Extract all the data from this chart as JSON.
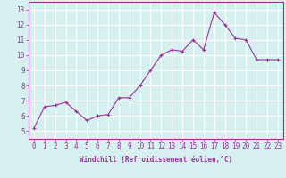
{
  "x": [
    0,
    1,
    2,
    3,
    4,
    5,
    6,
    7,
    8,
    9,
    10,
    11,
    12,
    13,
    14,
    15,
    16,
    17,
    18,
    19,
    20,
    21,
    22,
    23
  ],
  "y": [
    5.2,
    6.6,
    6.7,
    6.9,
    6.3,
    5.7,
    6.0,
    6.1,
    7.2,
    7.2,
    8.0,
    9.0,
    10.0,
    10.35,
    10.25,
    11.0,
    10.35,
    12.8,
    12.0,
    11.1,
    11.0,
    9.7,
    9.7,
    9.7
  ],
  "line_color": "#993399",
  "marker": "+",
  "bg_color": "#d6f0f0",
  "grid_color": "#ffffff",
  "xlabel": "Windchill (Refroidissement éolien,°C)",
  "xlim": [
    -0.5,
    23.5
  ],
  "ylim": [
    4.5,
    13.5
  ],
  "yticks": [
    5,
    6,
    7,
    8,
    9,
    10,
    11,
    12,
    13
  ],
  "xticks": [
    0,
    1,
    2,
    3,
    4,
    5,
    6,
    7,
    8,
    9,
    10,
    11,
    12,
    13,
    14,
    15,
    16,
    17,
    18,
    19,
    20,
    21,
    22,
    23
  ],
  "tick_label_color": "#993399",
  "axis_label_color": "#993399",
  "label_fontsize": 5.5,
  "tick_fontsize": 5.5
}
